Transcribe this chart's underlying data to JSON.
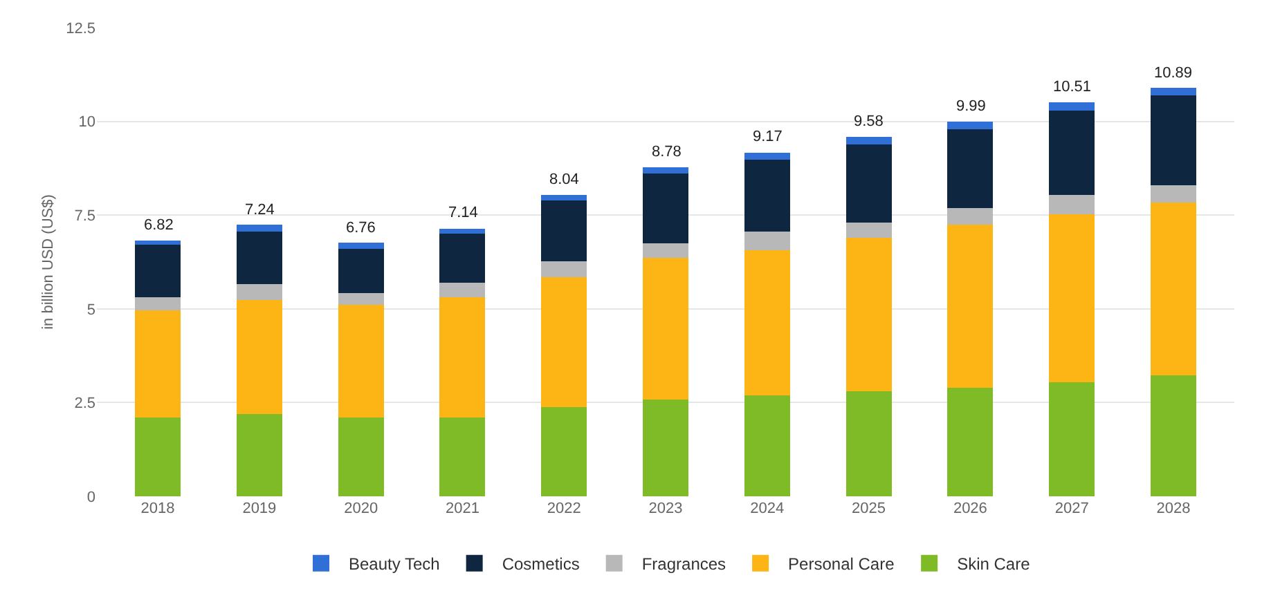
{
  "chart_data": {
    "type": "bar",
    "stacked": true,
    "ylabel": "in billion USD (US$)",
    "categories": [
      "2018",
      "2019",
      "2020",
      "2021",
      "2022",
      "2023",
      "2024",
      "2025",
      "2026",
      "2027",
      "2028"
    ],
    "series": [
      {
        "name": "Skin Care",
        "color": "#7fba27",
        "values": [
          2.1,
          2.2,
          2.1,
          2.1,
          2.38,
          2.59,
          2.69,
          2.8,
          2.9,
          3.04,
          3.22
        ]
      },
      {
        "name": "Personal Care",
        "color": "#fdb515",
        "values": [
          2.86,
          3.04,
          3.0,
          3.21,
          3.46,
          3.77,
          3.88,
          4.09,
          4.34,
          4.48,
          4.61
        ]
      },
      {
        "name": "Fragrances",
        "color": "#b8b8b8",
        "values": [
          0.35,
          0.42,
          0.32,
          0.39,
          0.42,
          0.39,
          0.49,
          0.42,
          0.45,
          0.52,
          0.46
        ]
      },
      {
        "name": "Cosmetics",
        "color": "#0f2641",
        "values": [
          1.4,
          1.4,
          1.18,
          1.3,
          1.63,
          1.86,
          1.92,
          2.07,
          2.1,
          2.25,
          2.4
        ]
      },
      {
        "name": "Beauty Tech",
        "color": "#2f6fd6",
        "values": [
          0.11,
          0.18,
          0.16,
          0.14,
          0.15,
          0.17,
          0.19,
          0.2,
          0.2,
          0.22,
          0.2
        ]
      }
    ],
    "totals": [
      "6.82",
      "7.24",
      "6.76",
      "7.14",
      "8.04",
      "8.78",
      "9.17",
      "9.58",
      "9.99",
      "10.51",
      "10.89"
    ],
    "ylim": [
      0,
      12.5
    ],
    "yticks": [
      0,
      2.5,
      5,
      7.5,
      10,
      12.5
    ],
    "grid": "y",
    "legend": "bottom"
  }
}
